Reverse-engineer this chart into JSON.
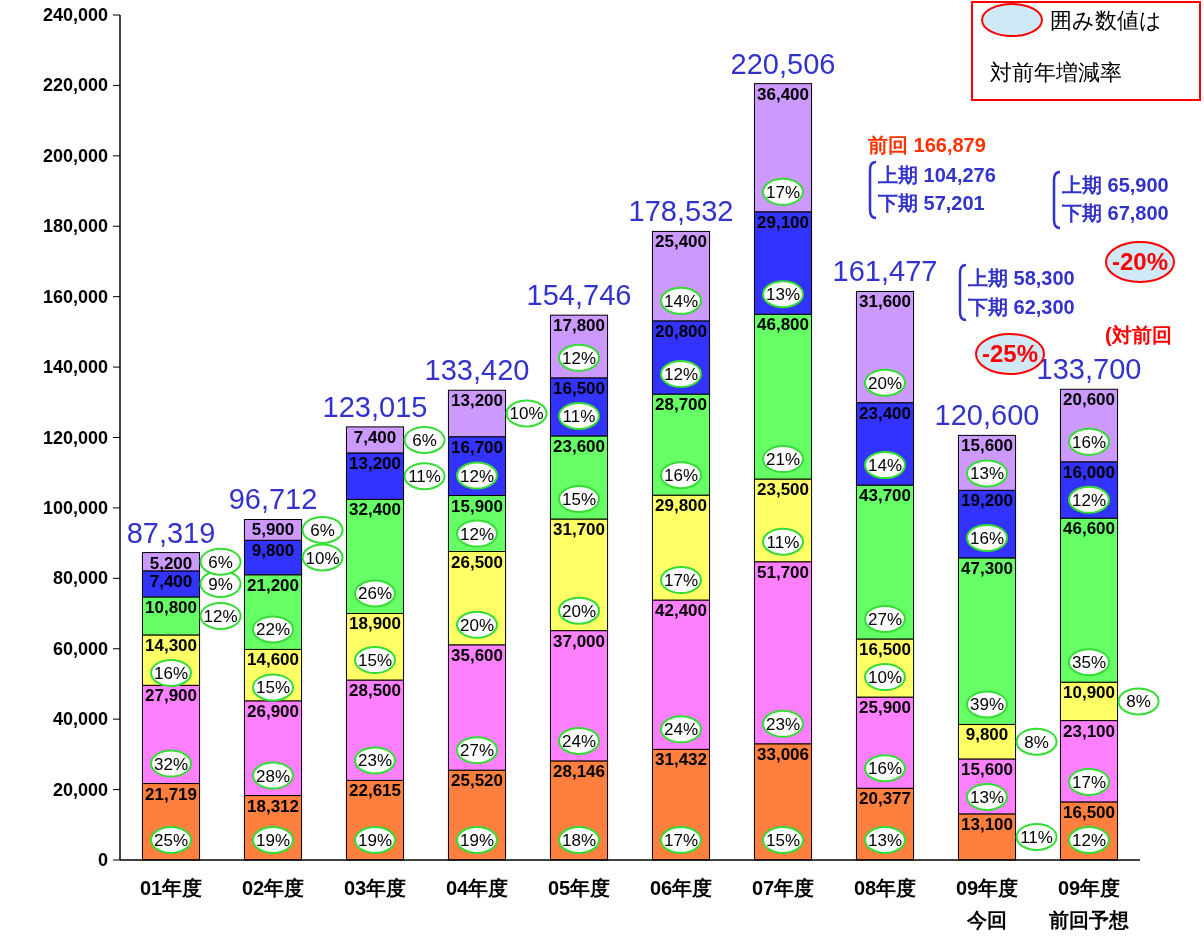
{
  "chart_data": {
    "type": "bar",
    "stacked": true,
    "categories": [
      "01年度",
      "02年度",
      "03年度",
      "04年度",
      "05年度",
      "06年度",
      "07年度",
      "08年度",
      "09年度",
      "09年度"
    ],
    "series": [
      {
        "color": "#ff7f3f",
        "values": [
          21719,
          18312,
          22615,
          25520,
          28146,
          31432,
          33006,
          20377,
          13100,
          16500
        ],
        "value_labels": [
          "21,719",
          "18,312",
          "22,615",
          "25,520",
          "28,146",
          "31,432",
          "33,006",
          "20,377",
          "13,100",
          "16,500"
        ]
      },
      {
        "color": "#ff80ff",
        "values": [
          27900,
          26900,
          28500,
          35600,
          37000,
          42400,
          51700,
          25900,
          15600,
          23100
        ],
        "value_labels": [
          "27,900",
          "26,900",
          "28,500",
          "35,600",
          "37,000",
          "42,400",
          "51,700",
          "25,900",
          "15,600",
          "23,100"
        ]
      },
      {
        "color": "#ffff66",
        "values": [
          14300,
          14600,
          18900,
          26500,
          31700,
          29800,
          23500,
          16500,
          9800,
          10900
        ],
        "value_labels": [
          "14,300",
          "14,600",
          "18,900",
          "26,500",
          "31,700",
          "29,800",
          "23,500",
          "16,500",
          "9,800",
          "10,900"
        ]
      },
      {
        "color": "#66ff66",
        "values": [
          10800,
          21200,
          32400,
          15900,
          23600,
          28700,
          46800,
          43700,
          47300,
          46600
        ],
        "value_labels": [
          "10,800",
          "21,200",
          "32,400",
          "15,900",
          "23,600",
          "28,700",
          "46,800",
          "43,700",
          "47,300",
          "46,600"
        ]
      },
      {
        "color": "#3333ff",
        "values": [
          7400,
          9800,
          13200,
          16700,
          16500,
          20800,
          29100,
          23400,
          19200,
          16000
        ],
        "value_labels": [
          "7,400",
          "9,800",
          "13,200",
          "16,700",
          "16,500",
          "20,800",
          "29,100",
          "23,400",
          "19,200",
          "16,000"
        ]
      },
      {
        "color": "#cc99ff",
        "values": [
          5200,
          5900,
          7400,
          13200,
          17800,
          25400,
          36400,
          31600,
          15600,
          20600
        ],
        "value_labels": [
          "5,200",
          "5,900",
          "7,400",
          "13,200",
          "17,800",
          "25,400",
          "36,400",
          "31,600",
          "15,600",
          "20,600"
        ]
      }
    ],
    "ylim": [
      0,
      240000
    ],
    "yticks": [
      0,
      {
        "value": 20000,
        "label": "20,000"
      },
      {
        "value": 40000,
        "label": "40,000"
      },
      {
        "value": 60000,
        "label": "60,000"
      },
      {
        "value": 80000,
        "label": "80,000"
      },
      {
        "value": 100000,
        "label": "100,000"
      },
      {
        "value": 120000,
        "label": "120,000"
      },
      {
        "value": 140000,
        "label": "140,000"
      },
      {
        "value": 160000,
        "label": "160,000"
      },
      {
        "value": 180000,
        "label": "180,000"
      },
      {
        "value": 200000,
        "label": "200,000"
      },
      {
        "value": 220000,
        "label": "220,000"
      },
      {
        "value": 240000,
        "label": "240,000"
      }
    ],
    "totals": [
      "87,319",
      "96,712",
      "123,015",
      "133,420",
      "154,746",
      "178,532",
      "220,506",
      "161,477",
      "120,600",
      "133,700"
    ],
    "grid": false,
    "annotations": [
      {
        "text": "25%",
        "x": "01年度",
        "y": 0
      },
      {
        "text": "32%",
        "x": "01年度",
        "y": 21719
      },
      {
        "text": "16%",
        "x": "01年度",
        "y": 49619
      },
      {
        "text": "12%",
        "x": "01年度",
        "y": 63919
      },
      {
        "text": "9%",
        "x": "01年度",
        "y": 74719
      },
      {
        "text": "6%",
        "x": "01年度",
        "y": 82119
      },
      {
        "text": "19%",
        "x": "02年度",
        "y": 0
      },
      {
        "text": "28%",
        "x": "02年度",
        "y": 18312
      },
      {
        "text": "15%",
        "x": "02年度",
        "y": 45212
      },
      {
        "text": "22%",
        "x": "02年度",
        "y": 59812
      },
      {
        "text": "10%",
        "x": "02年度",
        "y": 81012
      },
      {
        "text": "6%",
        "x": "02年度",
        "y": 90812
      },
      {
        "text": "19%",
        "x": "03年度",
        "y": 0
      },
      {
        "text": "23%",
        "x": "03年度",
        "y": 22615
      },
      {
        "text": "15%",
        "x": "03年度",
        "y": 51115
      },
      {
        "text": "26%",
        "x": "03年度",
        "y": 70015
      },
      {
        "text": "11%",
        "x": "03年度",
        "y": 102415
      },
      {
        "text": "6%",
        "x": "03年度",
        "y": 115615
      },
      {
        "text": "19%",
        "x": "04年度",
        "y": 0
      },
      {
        "text": "27%",
        "x": "04年度",
        "y": 25520
      },
      {
        "text": "20%",
        "x": "04年度",
        "y": 61120
      },
      {
        "text": "12%",
        "x": "04年度",
        "y": 87620
      },
      {
        "text": "12%",
        "x": "04年度",
        "y": 103520
      },
      {
        "text": "10%",
        "x": "04年度",
        "y": 120220
      },
      {
        "text": "18%",
        "x": "05年度",
        "y": 0
      },
      {
        "text": "24%",
        "x": "05年度",
        "y": 28146
      },
      {
        "text": "20%",
        "x": "05年度",
        "y": 65146
      },
      {
        "text": "15%",
        "x": "05年度",
        "y": 96846
      },
      {
        "text": "11%",
        "x": "05年度",
        "y": 120446
      },
      {
        "text": "12%",
        "x": "05年度",
        "y": 136946
      },
      {
        "text": "17%",
        "x": "06年度",
        "y": 0
      },
      {
        "text": "24%",
        "x": "06年度",
        "y": 31432
      },
      {
        "text": "17%",
        "x": "06年度",
        "y": 73832
      },
      {
        "text": "16%",
        "x": "06年度",
        "y": 103632
      },
      {
        "text": "12%",
        "x": "06年度",
        "y": 132332
      },
      {
        "text": "14%",
        "x": "06年度",
        "y": 153132
      },
      {
        "text": "15%",
        "x": "07年度",
        "y": 0
      },
      {
        "text": "23%",
        "x": "07年度",
        "y": 33006
      },
      {
        "text": "11%",
        "x": "07年度",
        "y": 84706
      },
      {
        "text": "21%",
        "x": "07年度",
        "y": 108206
      },
      {
        "text": "13%",
        "x": "07年度",
        "y": 155006
      },
      {
        "text": "17%",
        "x": "07年度",
        "y": 184106
      },
      {
        "text": "13%",
        "x": "08年度",
        "y": 0
      },
      {
        "text": "16%",
        "x": "08年度",
        "y": 20377
      },
      {
        "text": "10%",
        "x": "08年度",
        "y": 46277
      },
      {
        "text": "27%",
        "x": "08年度",
        "y": 62777
      },
      {
        "text": "14%",
        "x": "08年度",
        "y": 106477
      },
      {
        "text": "20%",
        "x": "08年度",
        "y": 129877
      },
      {
        "text": "11%",
        "x": "09年度",
        "y": 0
      },
      {
        "text": "13%",
        "x": "09年度",
        "y": 13100
      },
      {
        "text": "8%",
        "x": "09年度",
        "y": 28700
      },
      {
        "text": "39%",
        "x": "09年度",
        "y": 38500
      },
      {
        "text": "16%",
        "x": "09年度",
        "y": 85800
      },
      {
        "text": "13%",
        "x": "09年度",
        "y": 105000
      },
      "12%",
      "17%",
      "8%",
      "35%",
      "12%",
      "16%",
      "囲み数値は",
      "対前年増減率",
      "前回 166,879",
      "上期 104,276",
      "下期 57,201",
      "上期 58,300",
      "下期 62,300",
      "上期 65,900",
      "下期 67,800",
      "-25%",
      "-20%",
      "(対前回",
      "今回",
      "前回予想"
    ]
  }
}
